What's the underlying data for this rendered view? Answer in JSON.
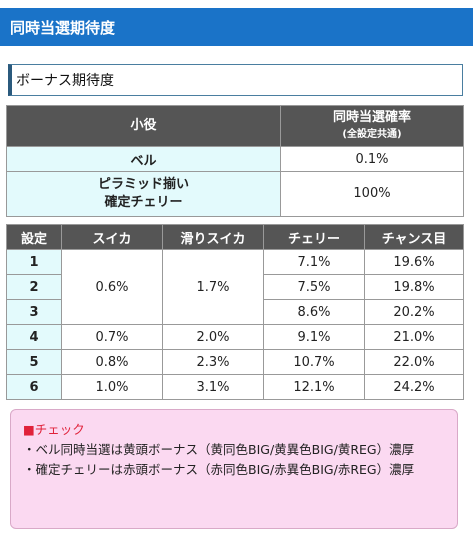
{
  "header": {
    "title": "同時当選期待度"
  },
  "section": {
    "subtitle": "ボーナス期待度"
  },
  "table1": {
    "col1": "小役",
    "col2_line1": "同時当選確率",
    "col2_line2": "(全設定共通)",
    "rows": [
      {
        "name": "ベル",
        "value": "0.1%"
      },
      {
        "name_line1": "ピラミッド揃い",
        "name_line2": "確定チェリー",
        "value": "100%"
      }
    ]
  },
  "table2": {
    "headers": [
      "設定",
      "スイカ",
      "滑りスイカ",
      "チェリー",
      "チャンス目"
    ],
    "rows": [
      {
        "setting": "1",
        "cherry": "7.1%",
        "chance": "19.6%"
      },
      {
        "setting": "2",
        "cherry": "7.5%",
        "chance": "19.8%"
      },
      {
        "setting": "3",
        "cherry": "8.6%",
        "chance": "20.2%"
      },
      {
        "setting": "4",
        "suika": "0.7%",
        "slip_suika": "2.0%",
        "cherry": "9.1%",
        "chance": "21.0%"
      },
      {
        "setting": "5",
        "suika": "0.8%",
        "slip_suika": "2.3%",
        "cherry": "10.7%",
        "chance": "22.0%"
      },
      {
        "setting": "6",
        "suika": "1.0%",
        "slip_suika": "3.1%",
        "cherry": "12.1%",
        "chance": "24.2%"
      }
    ],
    "merged_1_3": {
      "suika": "0.6%",
      "slip_suika": "1.7%"
    }
  },
  "check": {
    "title": "■チェック",
    "line1": "・ベル同時当選は黄頭ボーナス（黄同色BIG/黄異色BIG/黄REG）濃厚",
    "line2": "・確定チェリーは赤頭ボーナス（赤同色BIG/赤異色BIG/赤REG）濃厚"
  },
  "colors": {
    "header_bg": "#1a73c8",
    "th_bg": "#555555",
    "label_bg": "#e3fafc",
    "check_bg": "#fbd9f1",
    "check_title": "#e0223a"
  }
}
